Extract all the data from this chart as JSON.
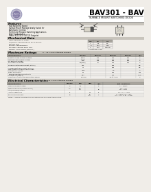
{
  "title": "BAV301 - BAV303",
  "subtitle": "SURFACE MOUNT SWITCHING DIODE",
  "bg_color": "#f0ede8",
  "white": "#ffffff",
  "section_bg": "#c8c4bc",
  "table_header_bg": "#a8a49c",
  "features_title": "Features",
  "features_items": [
    "Fast Switching Speed",
    "Surface Mount Package Ideally Suited for",
    "Automatic Insertion",
    "For General Purpose Switching Applications",
    "High Conductance",
    "Fits on SOD-323 / SOT-23 Footprint"
  ],
  "mech_title": "Mechanical Data",
  "mech_items": [
    "Case: Minimelf, P. Glass",
    "Terminals: Solderable per MIL-STD-202,",
    "Method 208",
    "Polarity: Cathode Band",
    "Marking: Cathode Band Only",
    "Weight: 0.012 grams (approx.)"
  ],
  "mech_col_labels": [
    "Dim",
    "Min",
    "Max"
  ],
  "mech_table_data": [
    [
      "A",
      "1.5",
      "2.0"
    ],
    [
      "B",
      "1.60",
      "1.85"
    ],
    [
      "C",
      "1.20",
      "Nominal"
    ]
  ],
  "max_ratings_title": "Maximum Ratings",
  "max_ratings_sub": "TJ = 25°C unless otherwise specified",
  "max_cols": [
    "Characteristics",
    "Symbol",
    "BAV301",
    "BAV302",
    "BAV303",
    "Unit"
  ],
  "max_rows": [
    [
      "Repetitive Peak Reverse Voltage",
      "VRRM",
      "120",
      "200",
      "200",
      "V"
    ],
    [
      "Working Peak Reverse Voltage\nDC Blocking Voltage",
      "VRWM\nVR",
      "100\n100",
      "150\n150",
      "150\n150",
      "V\nV"
    ],
    [
      "RMS Reverse Voltage",
      "VR(RMS)",
      "70",
      "100",
      "100",
      "V"
    ],
    [
      "Forward Continuous Current (Note 1)",
      "IFav",
      "",
      "200",
      "",
      "mA"
    ],
    [
      "Average Rectified Current (Note 1)",
      "Io",
      "",
      "200",
      "",
      "mA"
    ],
    [
      "Non-Repetitive Peak Forward Surge\nCurrent 10 x 1.0 ms",
      "IFSM",
      "",
      "1.0",
      "",
      "A"
    ],
    [
      "Power Dissipation",
      "PD",
      "",
      "200",
      "",
      "mW"
    ],
    [
      "Thermal Resistance Junction to\nAmbient Air (Note 1)",
      "RθJA",
      "",
      "500",
      "",
      "°C/W"
    ],
    [
      "Operating and Storage Temperature Range",
      "TJ, TSTG",
      "",
      "-55 to +175",
      "",
      "°C"
    ]
  ],
  "elec_title": "Electrical Characteristics",
  "elec_sub": "TJ = 25°C unless otherwise specified",
  "elec_cols": [
    "Characteristics",
    "Symbol",
    "Min",
    "Max",
    "Unit",
    "Test Conditions"
  ],
  "elec_rows": [
    [
      "Maximum Forward Voltage",
      "VF",
      "1.0",
      "",
      "V",
      "IF = 100mA"
    ],
    [
      "Maximum Reverse Recovery Current /\nAt Pulse Reverse Voltage",
      "Irec",
      "100\n150",
      "",
      "nA",
      "VR = 75 V\nVR = 150 V"
    ],
    [
      "Junction Capacitance",
      "Cj",
      "",
      "2.5",
      "pF",
      "VR = 0, f = 1MHz"
    ],
    [
      "Reverse Recovery Time",
      "trr",
      "",
      "50\n100",
      "ns",
      "IF = 10 mA, IR = 1 mA,\nIrec = 0.1 x IR, RL = 100Ω"
    ]
  ],
  "note": "Notes: 1. Device characteristics and data are for at ambient temperature."
}
